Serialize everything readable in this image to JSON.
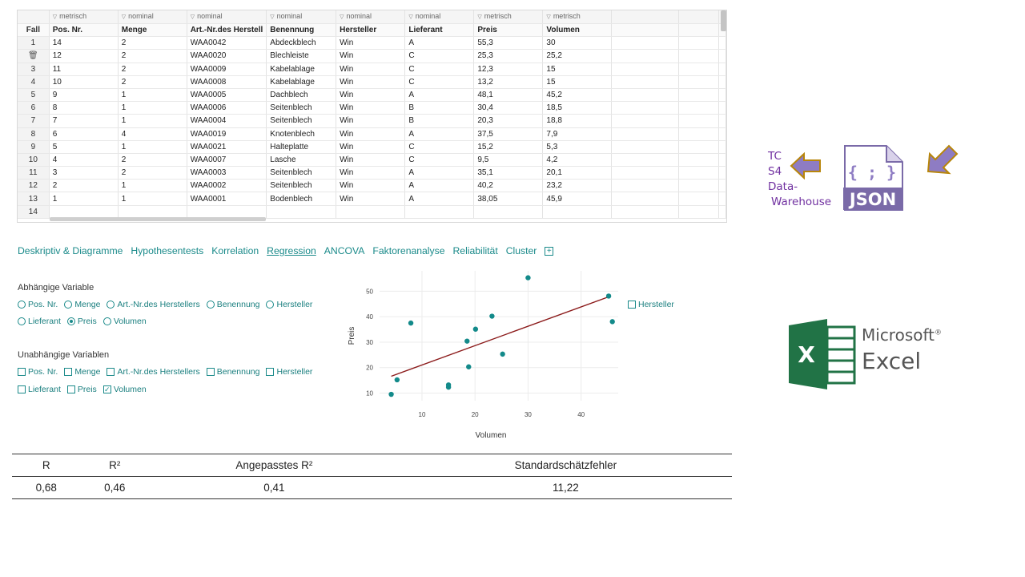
{
  "grid": {
    "row_header_label": "Fall",
    "types": [
      "metrisch",
      "nominal",
      "nominal",
      "nominal",
      "nominal",
      "nominal",
      "metrisch",
      "metrisch",
      "",
      ""
    ],
    "headers": [
      "Pos. Nr.",
      "Menge",
      "Art.-Nr.des Herstell",
      "Benennung",
      "Hersteller",
      "Lieferant",
      "Preis",
      "Volumen",
      "",
      ""
    ],
    "rows": [
      {
        "n": "1",
        "cells": [
          "14",
          "2",
          "WAA0042",
          "Abdeckblech",
          "Win",
          "A",
          "55,3",
          "30",
          "",
          ""
        ]
      },
      {
        "n": "",
        "trash": true,
        "cells": [
          "12",
          "2",
          "WAA0020",
          "Blechleiste",
          "Win",
          "C",
          "25,3",
          "25,2",
          "",
          ""
        ]
      },
      {
        "n": "3",
        "cells": [
          "11",
          "2",
          "WAA0009",
          "Kabelablage",
          "Win",
          "C",
          "12,3",
          "15",
          "",
          ""
        ]
      },
      {
        "n": "4",
        "cells": [
          "10",
          "2",
          "WAA0008",
          "Kabelablage",
          "Win",
          "C",
          "13,2",
          "15",
          "",
          ""
        ]
      },
      {
        "n": "5",
        "cells": [
          "9",
          "1",
          "WAA0005",
          "Dachblech",
          "Win",
          "A",
          "48,1",
          "45,2",
          "",
          ""
        ]
      },
      {
        "n": "6",
        "cells": [
          "8",
          "1",
          "WAA0006",
          "Seitenblech",
          "Win",
          "B",
          "30,4",
          "18,5",
          "",
          ""
        ]
      },
      {
        "n": "7",
        "cells": [
          "7",
          "1",
          "WAA0004",
          "Seitenblech",
          "Win",
          "B",
          "20,3",
          "18,8",
          "",
          ""
        ]
      },
      {
        "n": "8",
        "cells": [
          "6",
          "4",
          "WAA0019",
          "Knotenblech",
          "Win",
          "A",
          "37,5",
          "7,9",
          "",
          ""
        ]
      },
      {
        "n": "9",
        "cells": [
          "5",
          "1",
          "WAA0021",
          "Halteplatte",
          "Win",
          "C",
          "15,2",
          "5,3",
          "",
          ""
        ]
      },
      {
        "n": "10",
        "cells": [
          "4",
          "2",
          "WAA0007",
          "Lasche",
          "Win",
          "C",
          "9,5",
          "4,2",
          "",
          ""
        ]
      },
      {
        "n": "11",
        "cells": [
          "3",
          "2",
          "WAA0003",
          "Seitenblech",
          "Win",
          "A",
          "35,1",
          "20,1",
          "",
          ""
        ]
      },
      {
        "n": "12",
        "cells": [
          "2",
          "1",
          "WAA0002",
          "Seitenblech",
          "Win",
          "A",
          "40,2",
          "23,2",
          "",
          ""
        ]
      },
      {
        "n": "13",
        "cells": [
          "1",
          "1",
          "WAA0001",
          "Bodenblech",
          "Win",
          "A",
          "38,05",
          "45,9",
          "",
          ""
        ]
      },
      {
        "n": "14",
        "cells": [
          "",
          "",
          "",
          "",
          "",
          "",
          "",
          "",
          "",
          ""
        ]
      }
    ]
  },
  "side": {
    "tc_lines": [
      "TC",
      "S4",
      "Data-",
      "Warehouse"
    ],
    "json_text": "JSON",
    "json_braces": "{ ; }",
    "accent": "#7030a0",
    "arrow_fill": "#8e7cc3",
    "arrow_stroke": "#b8860b"
  },
  "tabs": [
    {
      "label": "Deskriptiv & Diagramme",
      "active": false
    },
    {
      "label": "Hypothesentests",
      "active": false
    },
    {
      "label": "Korrelation",
      "active": false
    },
    {
      "label": "Regression",
      "active": true
    },
    {
      "label": "ANCOVA",
      "active": false
    },
    {
      "label": "Faktorenanalyse",
      "active": false
    },
    {
      "label": "Reliabilität",
      "active": false
    },
    {
      "label": "Cluster",
      "active": false
    }
  ],
  "tab_plus": "+",
  "dependent": {
    "title": "Abhängige Variable",
    "row1": [
      {
        "label": "Pos. Nr.",
        "checked": false
      },
      {
        "label": "Menge",
        "checked": false
      },
      {
        "label": "Art.-Nr.des Herstellers",
        "checked": false
      },
      {
        "label": "Benennung",
        "checked": false
      },
      {
        "label": "Hersteller",
        "checked": false
      }
    ],
    "row2": [
      {
        "label": "Lieferant",
        "checked": false
      },
      {
        "label": "Preis",
        "checked": true
      },
      {
        "label": "Volumen",
        "checked": false
      }
    ]
  },
  "independent": {
    "title": "Unabhängige Variablen",
    "row1": [
      {
        "label": "Pos. Nr.",
        "checked": false
      },
      {
        "label": "Menge",
        "checked": false
      },
      {
        "label": "Art.-Nr.des Herstellers",
        "checked": false
      },
      {
        "label": "Benennung",
        "checked": false
      },
      {
        "label": "Hersteller",
        "checked": false
      }
    ],
    "row2": [
      {
        "label": "Lieferant",
        "checked": false
      },
      {
        "label": "Preis",
        "checked": false
      },
      {
        "label": "Volumen",
        "checked": true
      }
    ]
  },
  "side_checkbox": {
    "label": "Hersteller",
    "checked": false
  },
  "chart_data": {
    "type": "scatter",
    "xlabel": "Volumen",
    "ylabel": "Preis",
    "xlim": [
      2,
      47
    ],
    "ylim": [
      7,
      58
    ],
    "xticks": [
      10,
      20,
      30,
      40
    ],
    "yticks": [
      10,
      20,
      30,
      40,
      50
    ],
    "grid": true,
    "points": [
      [
        30,
        55.3
      ],
      [
        25.2,
        25.3
      ],
      [
        15,
        12.3
      ],
      [
        15,
        13.2
      ],
      [
        45.2,
        48.1
      ],
      [
        18.5,
        30.4
      ],
      [
        18.8,
        20.3
      ],
      [
        7.9,
        37.5
      ],
      [
        5.3,
        15.2
      ],
      [
        4.2,
        9.5
      ],
      [
        20.1,
        35.1
      ],
      [
        23.2,
        40.2
      ],
      [
        45.9,
        38.05
      ]
    ],
    "regression_line": {
      "x": [
        4.2,
        45.2
      ],
      "y": [
        16.6,
        47.8
      ]
    },
    "point_color": "#138a8a",
    "line_color": "#8b1a1a"
  },
  "results": {
    "headers": [
      "R",
      "R²",
      "Angepasstes R²",
      "Standardschätzfehler"
    ],
    "values": [
      "0,68",
      "0,46",
      "0,41",
      "11,22"
    ]
  },
  "excel": {
    "brand_top": "Microsoft",
    "brand_bottom": "Excel",
    "registered": "®",
    "x_letter": "X",
    "green": "#217346"
  }
}
